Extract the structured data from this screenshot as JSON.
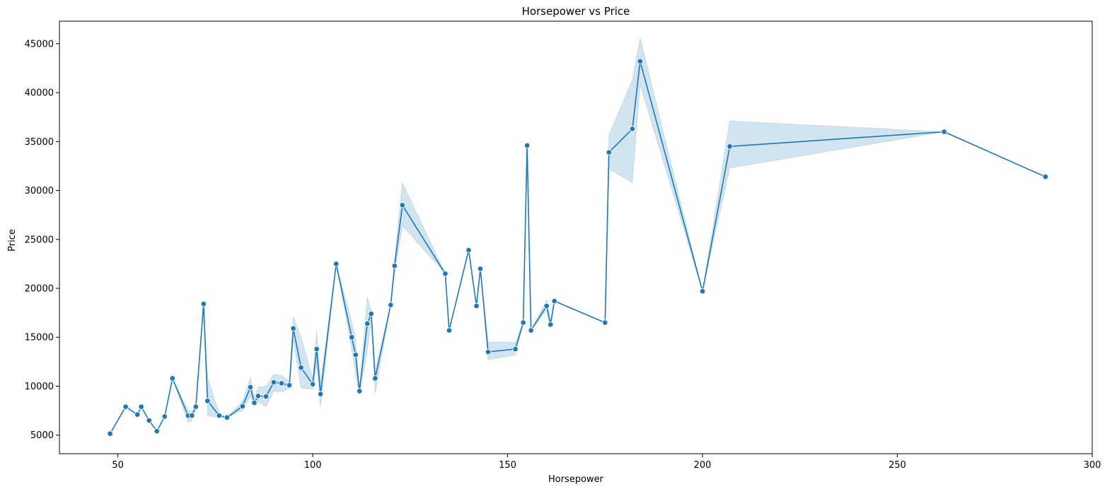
{
  "chart_data": {
    "type": "line",
    "title": "Horsepower vs Price",
    "xlabel": "Horsepower",
    "ylabel": "Price",
    "xlim": [
      35,
      300
    ],
    "ylim": [
      3100,
      47300
    ],
    "xticks": [
      50,
      100,
      150,
      200,
      250,
      300
    ],
    "xtick_labels": [
      "50",
      "100",
      "150",
      "200",
      "250",
      "300"
    ],
    "yticks": [
      5000,
      10000,
      15000,
      20000,
      25000,
      30000,
      35000,
      40000,
      45000
    ],
    "ytick_labels": [
      "5000",
      "10000",
      "15000",
      "20000",
      "25000",
      "30000",
      "35000",
      "40000",
      "45000"
    ],
    "grid": false,
    "line_color": "#1f77b4",
    "band_color": "#1f77b4",
    "series": [
      {
        "points": [
          {
            "x": 48,
            "y": 5150
          },
          {
            "x": 52,
            "y": 7900
          },
          {
            "x": 55,
            "y": 7100
          },
          {
            "x": 56,
            "y": 7900
          },
          {
            "x": 58,
            "y": 6500
          },
          {
            "x": 60,
            "y": 5400
          },
          {
            "x": 62,
            "y": 6900
          },
          {
            "x": 64,
            "y": 10800
          },
          {
            "x": 68,
            "y": 7000,
            "lo": 6300,
            "hi": 7600
          },
          {
            "x": 69,
            "y": 7000,
            "lo": 6500,
            "hi": 7400
          },
          {
            "x": 70,
            "y": 7900
          },
          {
            "x": 72,
            "y": 18400
          },
          {
            "x": 73,
            "y": 8500,
            "lo": 7000,
            "hi": 10900
          },
          {
            "x": 76,
            "y": 7000,
            "lo": 6800,
            "hi": 7200
          },
          {
            "x": 78,
            "y": 6800
          },
          {
            "x": 82,
            "y": 7950,
            "lo": 7500,
            "hi": 8500
          },
          {
            "x": 84,
            "y": 9900,
            "lo": 9000,
            "hi": 10900
          },
          {
            "x": 85,
            "y": 8300,
            "lo": 7900,
            "hi": 8700
          },
          {
            "x": 86,
            "y": 9000,
            "lo": 8400,
            "hi": 9900
          },
          {
            "x": 88,
            "y": 8950,
            "lo": 7900,
            "hi": 10000
          },
          {
            "x": 90,
            "y": 10400,
            "lo": 9500,
            "hi": 11200
          },
          {
            "x": 92,
            "y": 10300,
            "lo": 9400,
            "hi": 11100
          },
          {
            "x": 94,
            "y": 10100,
            "lo": 9800,
            "hi": 10500
          },
          {
            "x": 95,
            "y": 15900,
            "lo": 14800,
            "hi": 17100
          },
          {
            "x": 97,
            "y": 11900,
            "lo": 9800,
            "hi": 15000
          },
          {
            "x": 100,
            "y": 10200,
            "lo": 9700,
            "hi": 10800
          },
          {
            "x": 101,
            "y": 13800,
            "lo": 12200,
            "hi": 15600
          },
          {
            "x": 102,
            "y": 9200,
            "lo": 7800,
            "hi": 10400
          },
          {
            "x": 106,
            "y": 22500
          },
          {
            "x": 110,
            "y": 15000,
            "lo": 13800,
            "hi": 16600
          },
          {
            "x": 111,
            "y": 13200,
            "lo": 11200,
            "hi": 14700
          },
          {
            "x": 112,
            "y": 9500,
            "lo": 9200,
            "hi": 9800
          },
          {
            "x": 114,
            "y": 16400,
            "lo": 13600,
            "hi": 19100
          },
          {
            "x": 115,
            "y": 17400,
            "lo": 16900,
            "hi": 17700
          },
          {
            "x": 116,
            "y": 10800,
            "lo": 9300,
            "hi": 11600
          },
          {
            "x": 120,
            "y": 18300
          },
          {
            "x": 121,
            "y": 22300,
            "lo": 21600,
            "hi": 23100
          },
          {
            "x": 123,
            "y": 28500,
            "lo": 26400,
            "hi": 30800
          },
          {
            "x": 134,
            "y": 21500
          },
          {
            "x": 135,
            "y": 15700
          },
          {
            "x": 140,
            "y": 23900
          },
          {
            "x": 142,
            "y": 18200
          },
          {
            "x": 143,
            "y": 22000
          },
          {
            "x": 145,
            "y": 13500,
            "lo": 12700,
            "hi": 14500
          },
          {
            "x": 152,
            "y": 13800,
            "lo": 13200,
            "hi": 14500
          },
          {
            "x": 154,
            "y": 16500
          },
          {
            "x": 155,
            "y": 34600
          },
          {
            "x": 156,
            "y": 15700
          },
          {
            "x": 160,
            "y": 18200,
            "lo": 17800,
            "hi": 18800
          },
          {
            "x": 161,
            "y": 16300,
            "lo": 16000,
            "hi": 16700
          },
          {
            "x": 162,
            "y": 18700
          },
          {
            "x": 175,
            "y": 16500
          },
          {
            "x": 176,
            "y": 33900,
            "lo": 32200,
            "hi": 35700
          },
          {
            "x": 182,
            "y": 36300,
            "lo": 30800,
            "hi": 41300
          },
          {
            "x": 184,
            "y": 43200,
            "lo": 40800,
            "hi": 45600
          },
          {
            "x": 200,
            "y": 19700
          },
          {
            "x": 207,
            "y": 34500,
            "lo": 32300,
            "hi": 37100
          },
          {
            "x": 262,
            "y": 36000
          },
          {
            "x": 288,
            "y": 31400
          }
        ]
      }
    ]
  }
}
